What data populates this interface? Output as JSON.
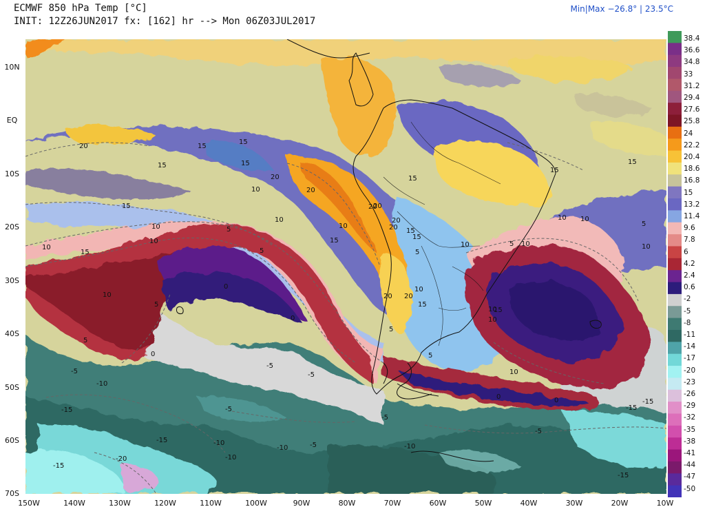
{
  "header": {
    "title": "ECMWF 850 hPa Temp [°C]",
    "init": "INIT: 12Z26JUN2017 fx: [162] hr --> Mon 06Z03JUL2017",
    "minmax": "Min|Max −26.8° | 23.5°C"
  },
  "map": {
    "lat_labels": [
      "10N",
      "EQ",
      "10S",
      "20S",
      "30S",
      "40S",
      "50S",
      "60S",
      "70S"
    ],
    "lon_labels": [
      "150W",
      "140W",
      "130W",
      "120W",
      "110W",
      "100W",
      "90W",
      "80W",
      "70W",
      "60W",
      "50W",
      "40W",
      "30W",
      "20W",
      "10W"
    ],
    "contour_labels": [
      "20",
      "15",
      "15",
      "15",
      "15",
      "20",
      "20",
      "20",
      "20",
      "15",
      "15",
      "15",
      "10",
      "10",
      "10",
      "10",
      "15",
      "15",
      "15",
      "10",
      "10",
      "10",
      "5",
      "5",
      "5",
      "5",
      "0",
      "5",
      "5",
      "5",
      "0",
      "0",
      "0",
      "10",
      "10",
      "10",
      "10",
      "5",
      "5",
      "0",
      "-5",
      "-5",
      "-5",
      "-10",
      "-5",
      "-5",
      "-10",
      "-10",
      "-15",
      "-15",
      "-20",
      "-15",
      "-15",
      "-10",
      "-5",
      "-5",
      "-15",
      "-15",
      "-10",
      "20",
      "20",
      "20",
      "20",
      "15",
      "15",
      "10",
      "15",
      "15",
      "10",
      "10",
      "10",
      "10"
    ]
  },
  "colorbar": {
    "labels": [
      "38.4",
      "36.6",
      "34.8",
      "33",
      "31.2",
      "29.4",
      "27.6",
      "25.8",
      "24",
      "22.2",
      "20.4",
      "18.6",
      "16.8",
      "15",
      "13.2",
      "11.4",
      "9.6",
      "7.8",
      "6",
      "4.2",
      "2.4",
      "0.6",
      "-2",
      "-5",
      "-8",
      "-11",
      "-14",
      "-17",
      "-20",
      "-23",
      "-26",
      "-29",
      "-32",
      "-35",
      "-38",
      "-41",
      "-44",
      "-47",
      "-50"
    ],
    "colors": [
      "#3f9a5a",
      "#7a2f88",
      "#8e3a80",
      "#a1476f",
      "#b1586a",
      "#a0567e",
      "#8d1f3a",
      "#7d1525",
      "#e86f12",
      "#f59a1b",
      "#f7c237",
      "#f0e27b",
      "#c7c39a",
      "#7f76c0",
      "#6a67c2",
      "#86a6e2",
      "#f3b8b5",
      "#e48b88",
      "#c94444",
      "#a92634",
      "#6b2490",
      "#2d1c7b",
      "#d0d0d0",
      "#7a9a96",
      "#3e7a72",
      "#2f6963",
      "#4fa3a8",
      "#72d8d8",
      "#a2f2f2",
      "#c5eaf2",
      "#dcc0dc",
      "#e18fc8",
      "#dd6fba",
      "#d24fad",
      "#bd2d95",
      "#9b167b",
      "#7b1a6b",
      "#5a2a9c",
      "#4233b8"
    ]
  }
}
